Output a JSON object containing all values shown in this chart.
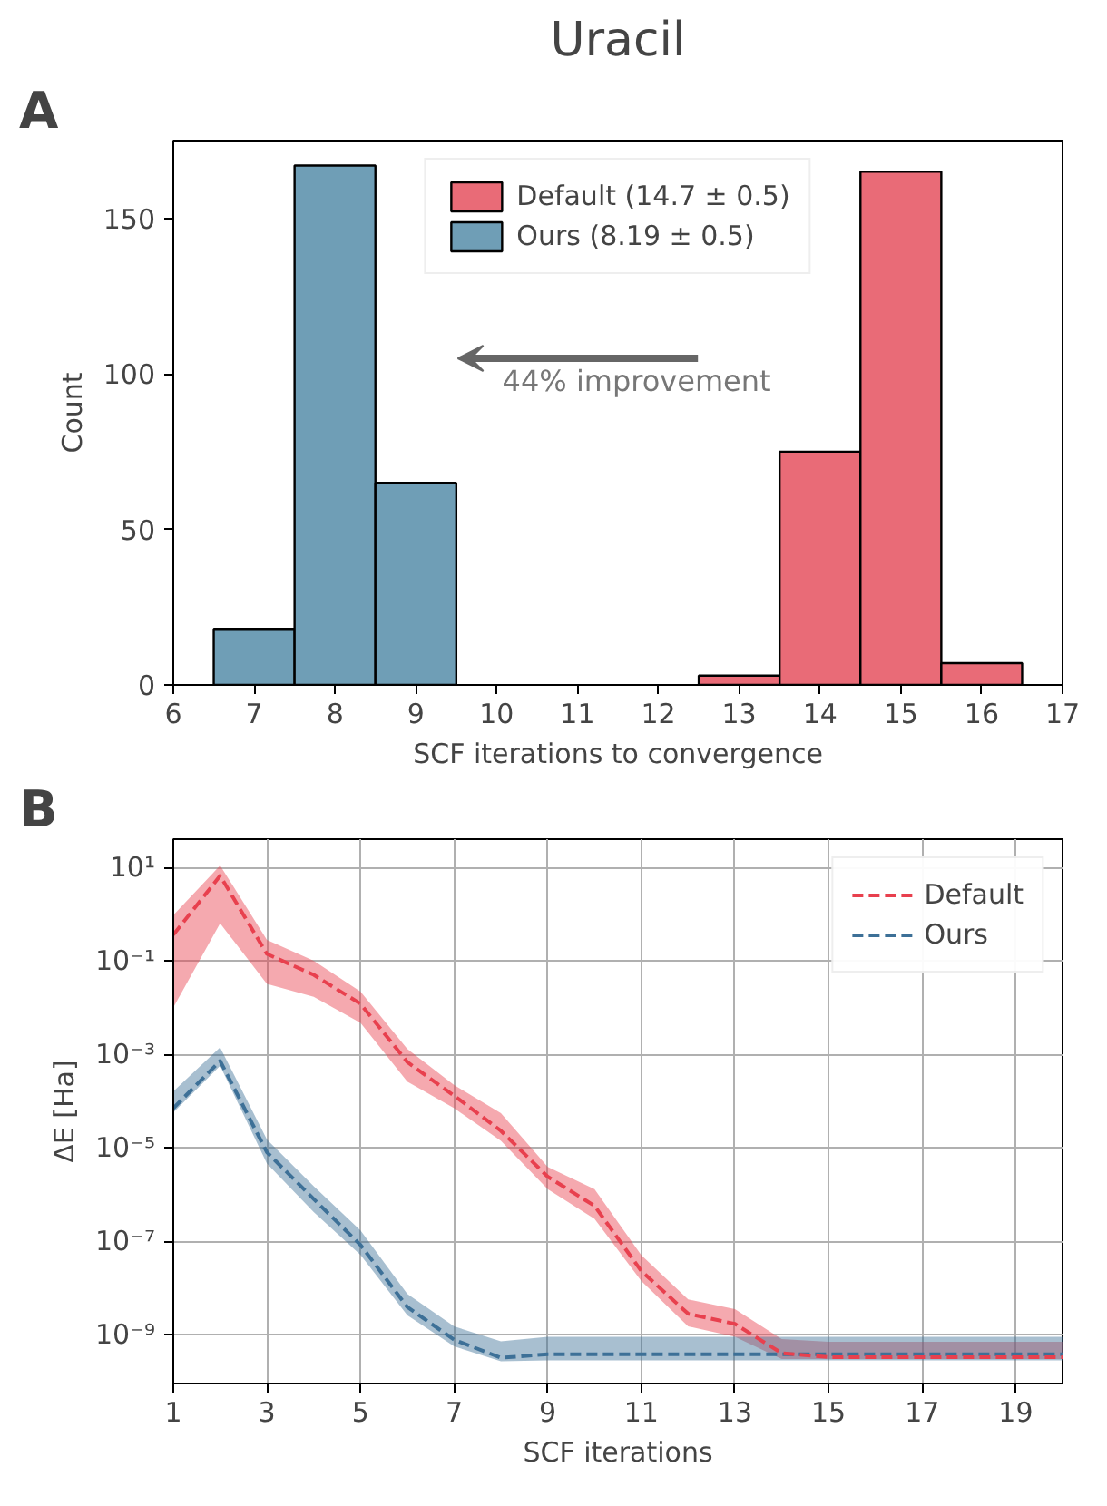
{
  "chart_data": [
    {
      "type": "histogram",
      "title": "Uracil",
      "xlabel": "SCF iterations to convergence",
      "ylabel": "Count",
      "annotations": [
        "A",
        "44% improvement"
      ],
      "xlim": [
        6,
        17
      ],
      "xticks": [
        6,
        7,
        8,
        9,
        10,
        11,
        12,
        13,
        14,
        15,
        16,
        17
      ],
      "ylim": [
        0,
        175
      ],
      "yticks": [
        0,
        50,
        100,
        150
      ],
      "legend": "top",
      "grid": false,
      "bins": [
        6.5,
        7.5,
        8.5,
        9.5,
        10.5,
        11.5,
        12.5,
        13.5,
        14.5,
        15.5,
        16.5
      ],
      "series": [
        {
          "name": "Default (14.7 ± 0.5)",
          "color": "#e96b77",
          "values": [
            null,
            null,
            null,
            null,
            null,
            null,
            3,
            75,
            165,
            7
          ]
        },
        {
          "name": "Ours (8.19 ± 0.5)",
          "color": "#6f9eb6",
          "values": [
            18,
            167,
            65,
            null,
            null,
            null,
            null,
            null,
            null,
            null
          ]
        }
      ]
    },
    {
      "type": "line",
      "xlabel": "SCF iterations",
      "ylabel": "ΔE [Ha]",
      "annotations": [
        "B"
      ],
      "log": "y",
      "grid": true,
      "legend": "top right",
      "line_style": "dashed",
      "marker": "none",
      "x": [
        1,
        2,
        3,
        4,
        5,
        6,
        7,
        8,
        9,
        10,
        11,
        12,
        13,
        14,
        15,
        16,
        17,
        18,
        19,
        20
      ],
      "xlim": [
        1,
        20
      ],
      "xticks": [
        1,
        3,
        5,
        7,
        9,
        11,
        13,
        15,
        17,
        19
      ],
      "ylim": [
        9e-11,
        40
      ],
      "yticks": [
        {
          "value": 10,
          "label": "10¹"
        },
        {
          "value": 0.1,
          "label": "10⁻¹"
        },
        {
          "value": 0.001,
          "label": "10⁻³"
        },
        {
          "value": 1e-05,
          "label": "10⁻⁵"
        },
        {
          "value": 1e-07,
          "label": "10⁻⁷"
        },
        {
          "value": 1e-09,
          "label": "10⁻⁹"
        }
      ],
      "series": [
        {
          "name": "Default",
          "color": "#e8404e",
          "values": [
            0.36,
            6.6,
            0.14,
            0.05,
            0.012,
            0.00068,
            0.00013,
            2.3e-05,
            2.4e-06,
            5.7e-07,
            2.3e-08,
            2.8e-09,
            1.7e-09,
            4e-10,
            3.3e-10,
            3.3e-10,
            3.3e-10,
            3.3e-10,
            3.3e-10,
            3.3e-10
          ],
          "upper": [
            0.95,
            11,
            0.28,
            0.1,
            0.022,
            0.0013,
            0.00022,
            5.5e-05,
            3.9e-06,
            1.3e-06,
            5e-08,
            5.7e-09,
            3.5e-09,
            8e-10,
            7e-10,
            7e-10,
            7e-10,
            7e-10,
            7e-10,
            7e-10
          ],
          "lower": [
            0.01,
            0.63,
            0.032,
            0.017,
            0.0047,
            0.00026,
            7e-05,
            1.4e-05,
            1.3e-06,
            3e-07,
            1.4e-08,
            1.5e-09,
            9e-10,
            3e-10,
            3e-10,
            3e-10,
            3e-10,
            3e-10,
            3e-10,
            3e-10
          ]
        },
        {
          "name": "Ours",
          "color": "#3d7097",
          "values": [
            7e-05,
            0.00072,
            8e-06,
            8e-07,
            8.3e-08,
            3.9e-09,
            7.8e-10,
            3.2e-10,
            3.8e-10,
            3.8e-10,
            3.8e-10,
            3.8e-10,
            3.8e-10,
            3.8e-10,
            3.8e-10,
            3.8e-10,
            3.8e-10,
            3.8e-10,
            3.8e-10,
            3.8e-10
          ],
          "upper": [
            0.00016,
            0.0014,
            1.5e-05,
            1.5e-06,
            1.7e-07,
            7.4e-09,
            1.5e-09,
            7.2e-10,
            9e-10,
            9e-10,
            9e-10,
            9e-10,
            9e-10,
            9e-10,
            9e-10,
            9e-10,
            9e-10,
            9e-10,
            9e-10,
            9e-10
          ],
          "lower": [
            5.7e-05,
            0.00057,
            4.6e-06,
            4.2e-07,
            5.1e-08,
            2.6e-09,
            5.6e-10,
            2.7e-10,
            2.8e-10,
            2.8e-10,
            2.8e-10,
            2.8e-10,
            2.8e-10,
            2.8e-10,
            2.8e-10,
            2.8e-10,
            2.8e-10,
            2.8e-10,
            2.8e-10,
            2.8e-10
          ]
        }
      ]
    }
  ]
}
